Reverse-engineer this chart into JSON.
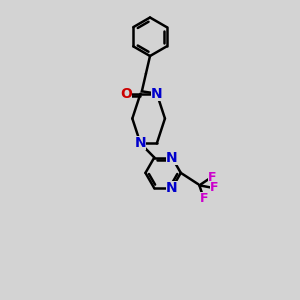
{
  "bg_color": "#d3d3d3",
  "bond_color": "#000000",
  "N_color": "#0000cc",
  "O_color": "#cc0000",
  "F_color": "#cc00cc",
  "lw": 1.8,
  "fs": 10,
  "fig_w": 3.0,
  "fig_h": 3.0,
  "dpi": 100,
  "xlim": [
    0,
    10
  ],
  "ylim": [
    0,
    13
  ]
}
